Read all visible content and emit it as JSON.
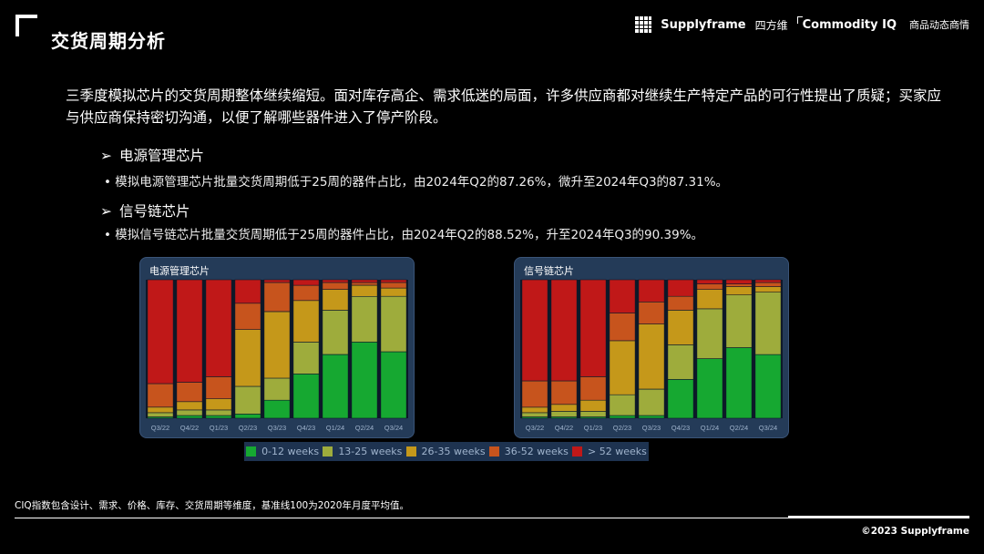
{
  "header": {
    "title": "交货周期分析",
    "brand_supplyframe": "Supplyframe",
    "brand_cn": "四方维",
    "brand_ciq": "Commodity IQ",
    "brand_ciq_cn": "商品动态商情"
  },
  "intro": "三季度模拟芯片的交货周期整体继续缩短。面对库存高企、需求低迷的局面，许多供应商都对继续生产特定产品的可行性提出了质疑；买家应与供应商保持密切沟通，以便了解哪些器件进入了停产阶段。",
  "sections": [
    {
      "heading": "电源管理芯片",
      "bullet": "模拟电源管理芯片批量交货周期低于25周的器件占比，由2024年Q2的87.26%，微升至2024年Q3的87.31%。"
    },
    {
      "heading": "信号链芯片",
      "bullet": "模拟信号链芯片批量交货周期低于25周的器件占比，由2024年Q2的88.52%，升至2024年Q3的90.39%。"
    }
  ],
  "colors": {
    "0-12 weeks": "#16a831",
    "13-25 weeks": "#9eac3c",
    "26-35 weeks": "#c5981a",
    "36-52 weeks": "#c7541d",
    "> 52 weeks": "#c01818"
  },
  "legend": [
    "0-12 weeks",
    "13-25 weeks",
    "26-35 weeks",
    "36-52 weeks",
    "> 52 weeks"
  ],
  "chart_data": [
    {
      "type": "bar",
      "stacked": true,
      "title": "电源管理芯片",
      "categories": [
        "Q3/22",
        "Q4/22",
        "Q1/23",
        "Q2/23",
        "Q3/23",
        "Q4/23",
        "Q1/24",
        "Q2/24",
        "Q3/24"
      ],
      "ylim": [
        0,
        100
      ],
      "series": [
        {
          "name": "0-12 weeks",
          "values": [
            1,
            2,
            2,
            3,
            13,
            32,
            46,
            55,
            48
          ]
        },
        {
          "name": "13-25 weeks",
          "values": [
            3,
            4,
            4,
            20,
            16,
            23,
            32,
            33,
            40
          ]
        },
        {
          "name": "26-35 weeks",
          "values": [
            4,
            6,
            8,
            41,
            48,
            30,
            15,
            8,
            6
          ]
        },
        {
          "name": "36-52 weeks",
          "values": [
            17,
            14,
            16,
            19,
            21,
            11,
            5,
            2,
            4
          ]
        },
        {
          "name": "> 52 weeks",
          "values": [
            75,
            74,
            70,
            17,
            2,
            4,
            2,
            2,
            2
          ]
        }
      ]
    },
    {
      "type": "bar",
      "stacked": true,
      "title": "信号链芯片",
      "categories": [
        "Q3/22",
        "Q4/22",
        "Q1/23",
        "Q2/23",
        "Q3/23",
        "Q4/23",
        "Q1/24",
        "Q2/24",
        "Q3/24"
      ],
      "ylim": [
        0,
        100
      ],
      "series": [
        {
          "name": "0-12 weeks",
          "values": [
            1,
            1,
            1,
            2,
            2,
            28,
            43,
            51,
            46
          ]
        },
        {
          "name": "13-25 weeks",
          "values": [
            3,
            4,
            4,
            15,
            19,
            25,
            36,
            38,
            45
          ]
        },
        {
          "name": "26-35 weeks",
          "values": [
            4,
            5,
            8,
            39,
            47,
            25,
            14,
            6,
            4
          ]
        },
        {
          "name": "36-52 weeks",
          "values": [
            19,
            17,
            17,
            20,
            16,
            10,
            4,
            2,
            3
          ]
        },
        {
          "name": "> 52 weeks",
          "values": [
            73,
            73,
            70,
            24,
            16,
            12,
            3,
            3,
            2
          ]
        }
      ]
    }
  ],
  "footnote": "CIQ指数包含设计、需求、价格、库存、交货周期等维度，基准线100为2020年月度平均值。",
  "copyright": "©2023 Supplyframe"
}
